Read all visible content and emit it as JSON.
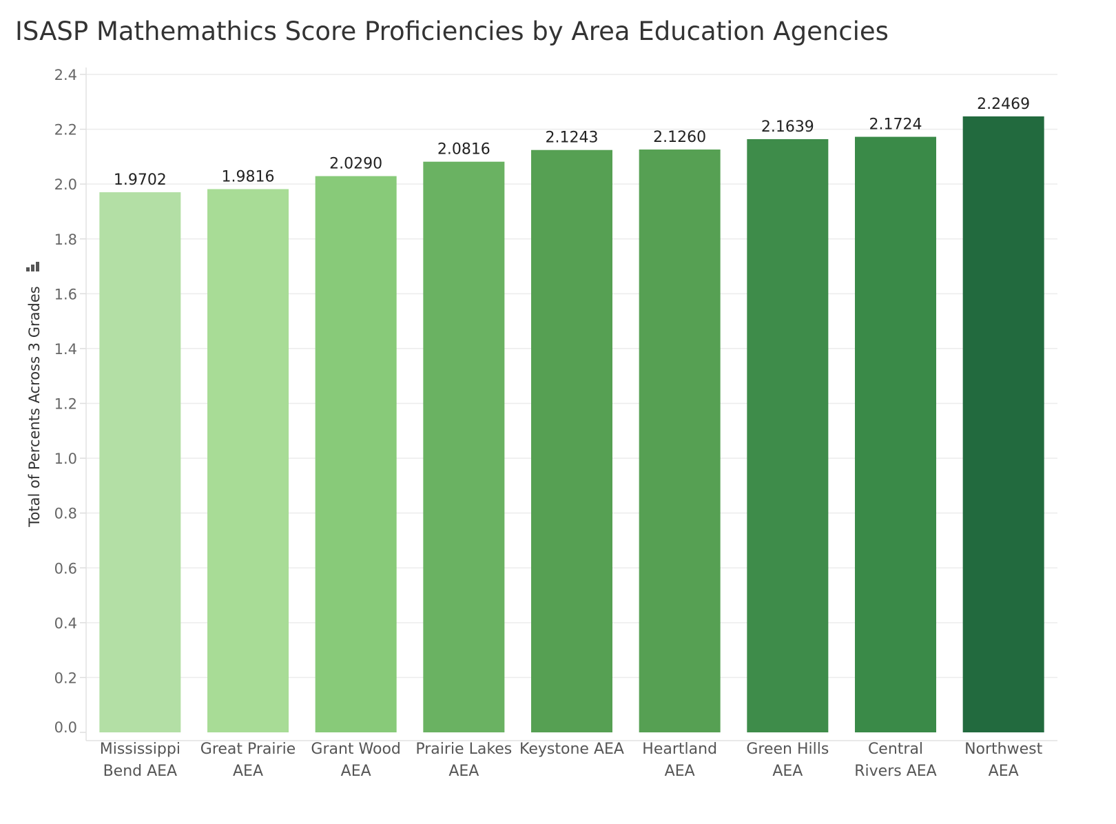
{
  "chart_data": {
    "type": "bar",
    "title": "ISASP Mathemathics Score Proficiencies by Area Education Agencies",
    "xlabel": "",
    "ylabel": "Total of Percents Across 3 Grades",
    "ylim": [
      0,
      2.4
    ],
    "yticks": [
      "0.0",
      "0.2",
      "0.4",
      "0.6",
      "0.8",
      "1.0",
      "1.2",
      "1.4",
      "1.6",
      "1.8",
      "2.0",
      "2.2",
      "2.4"
    ],
    "grid": true,
    "legend": "none",
    "categories": [
      [
        "Mississippi",
        "Bend AEA"
      ],
      [
        "Great Prairie",
        "AEA"
      ],
      [
        "Grant Wood",
        "AEA"
      ],
      [
        "Prairie Lakes",
        "AEA"
      ],
      [
        "Keystone AEA"
      ],
      [
        "Heartland",
        "AEA"
      ],
      [
        "Green Hills",
        "AEA"
      ],
      [
        "Central",
        "Rivers AEA"
      ],
      [
        "Northwest",
        "AEA"
      ]
    ],
    "values": [
      1.9702,
      1.9816,
      2.029,
      2.0816,
      2.1243,
      2.126,
      2.1639,
      2.1724,
      2.2469
    ],
    "value_labels": [
      "1.9702",
      "1.9816",
      "2.0290",
      "2.0816",
      "2.1243",
      "2.1260",
      "2.1639",
      "2.1724",
      "2.2469"
    ],
    "colors": [
      "#b3dfa5",
      "#a8dc96",
      "#88ca79",
      "#6ab262",
      "#56a053",
      "#56a053",
      "#3e8c4a",
      "#3a8a48",
      "#226a3e"
    ]
  }
}
